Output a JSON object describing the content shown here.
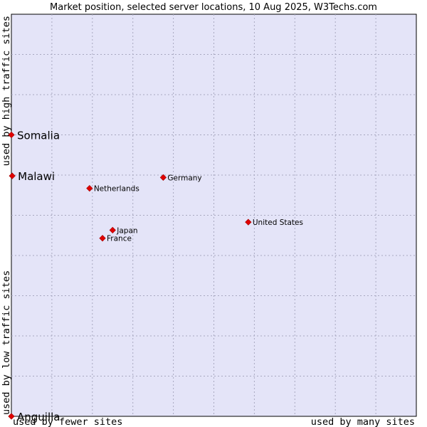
{
  "chart_data": {
    "type": "scatter",
    "title": "Market position, selected server locations, 10 Aug 2025, W3Techs.com",
    "xlabel_left": "used by fewer sites",
    "xlabel_right": "used by many sites",
    "ylabel_bottom": "used by low traffic sites",
    "ylabel_top": "used by high traffic sites",
    "xlim": [
      0,
      10
    ],
    "ylim": [
      0,
      10
    ],
    "grid": true,
    "colors": {
      "plot_background": "#e4e4f8",
      "marker": "#e00000",
      "grid": "#a8a8c0"
    },
    "points": [
      {
        "label": "Somalia",
        "x": 0.0,
        "y": 7.0,
        "emphasis": true
      },
      {
        "label": "Malawi",
        "x": 0.02,
        "y": 5.98,
        "emphasis": true
      },
      {
        "label": "Germany",
        "x": 3.75,
        "y": 5.94,
        "emphasis": false
      },
      {
        "label": "Netherlands",
        "x": 1.93,
        "y": 5.67,
        "emphasis": false
      },
      {
        "label": "United States",
        "x": 5.85,
        "y": 4.83,
        "emphasis": false
      },
      {
        "label": "Japan",
        "x": 2.5,
        "y": 4.63,
        "emphasis": false
      },
      {
        "label": "France",
        "x": 2.25,
        "y": 4.43,
        "emphasis": false
      },
      {
        "label": "Anguilla",
        "x": 0.0,
        "y": 0.0,
        "emphasis": true
      }
    ]
  }
}
